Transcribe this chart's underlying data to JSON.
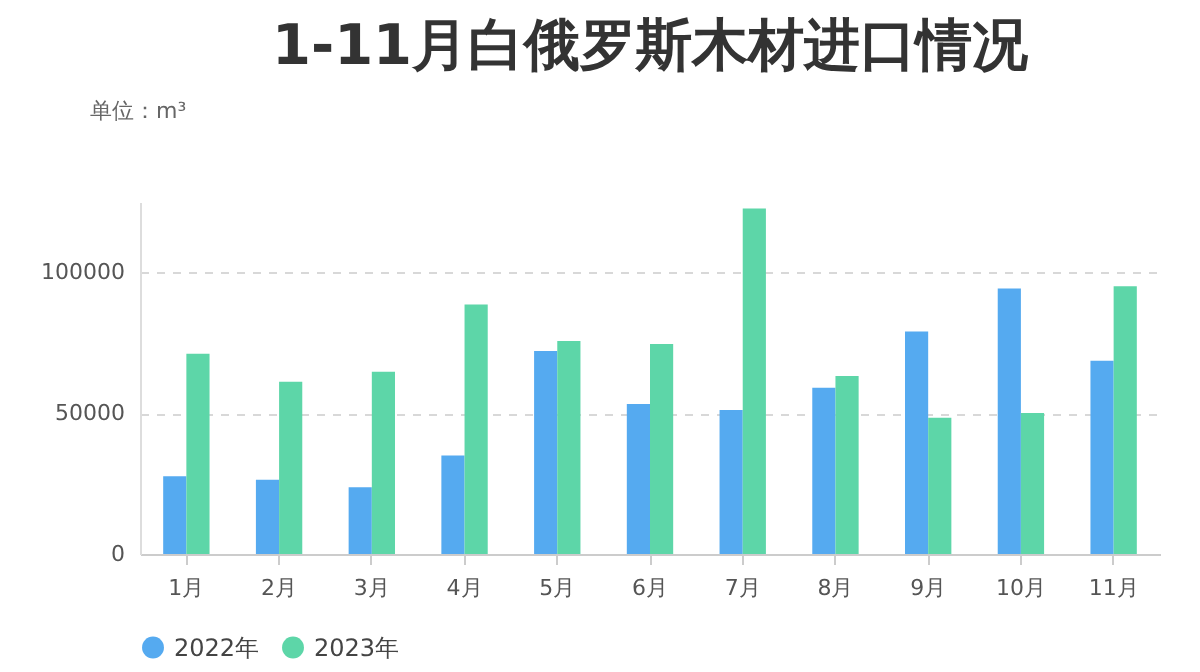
{
  "chart_data": {
    "type": "bar",
    "title": "1-11月白俄罗斯木材进口情况",
    "subtitle": "单位：m³",
    "categories": [
      "1月",
      "2月",
      "3月",
      "4月",
      "5月",
      "6月",
      "7月",
      "8月",
      "9月",
      "10月",
      "11月"
    ],
    "series": [
      {
        "name": "2022年",
        "color": "#55aaf0",
        "values": [
          27600,
          26400,
          23700,
          35000,
          72100,
          53300,
          51100,
          59000,
          79000,
          94300,
          68600
        ]
      },
      {
        "name": "2023年",
        "color": "#5dd6a8",
        "values": [
          71100,
          61200,
          64700,
          88600,
          75600,
          74600,
          122700,
          63200,
          48400,
          50100,
          95100
        ]
      }
    ],
    "ylim": [
      0,
      125000
    ],
    "yticks": [
      0,
      50000,
      100000
    ],
    "grid": "y",
    "legend": "bottom"
  }
}
